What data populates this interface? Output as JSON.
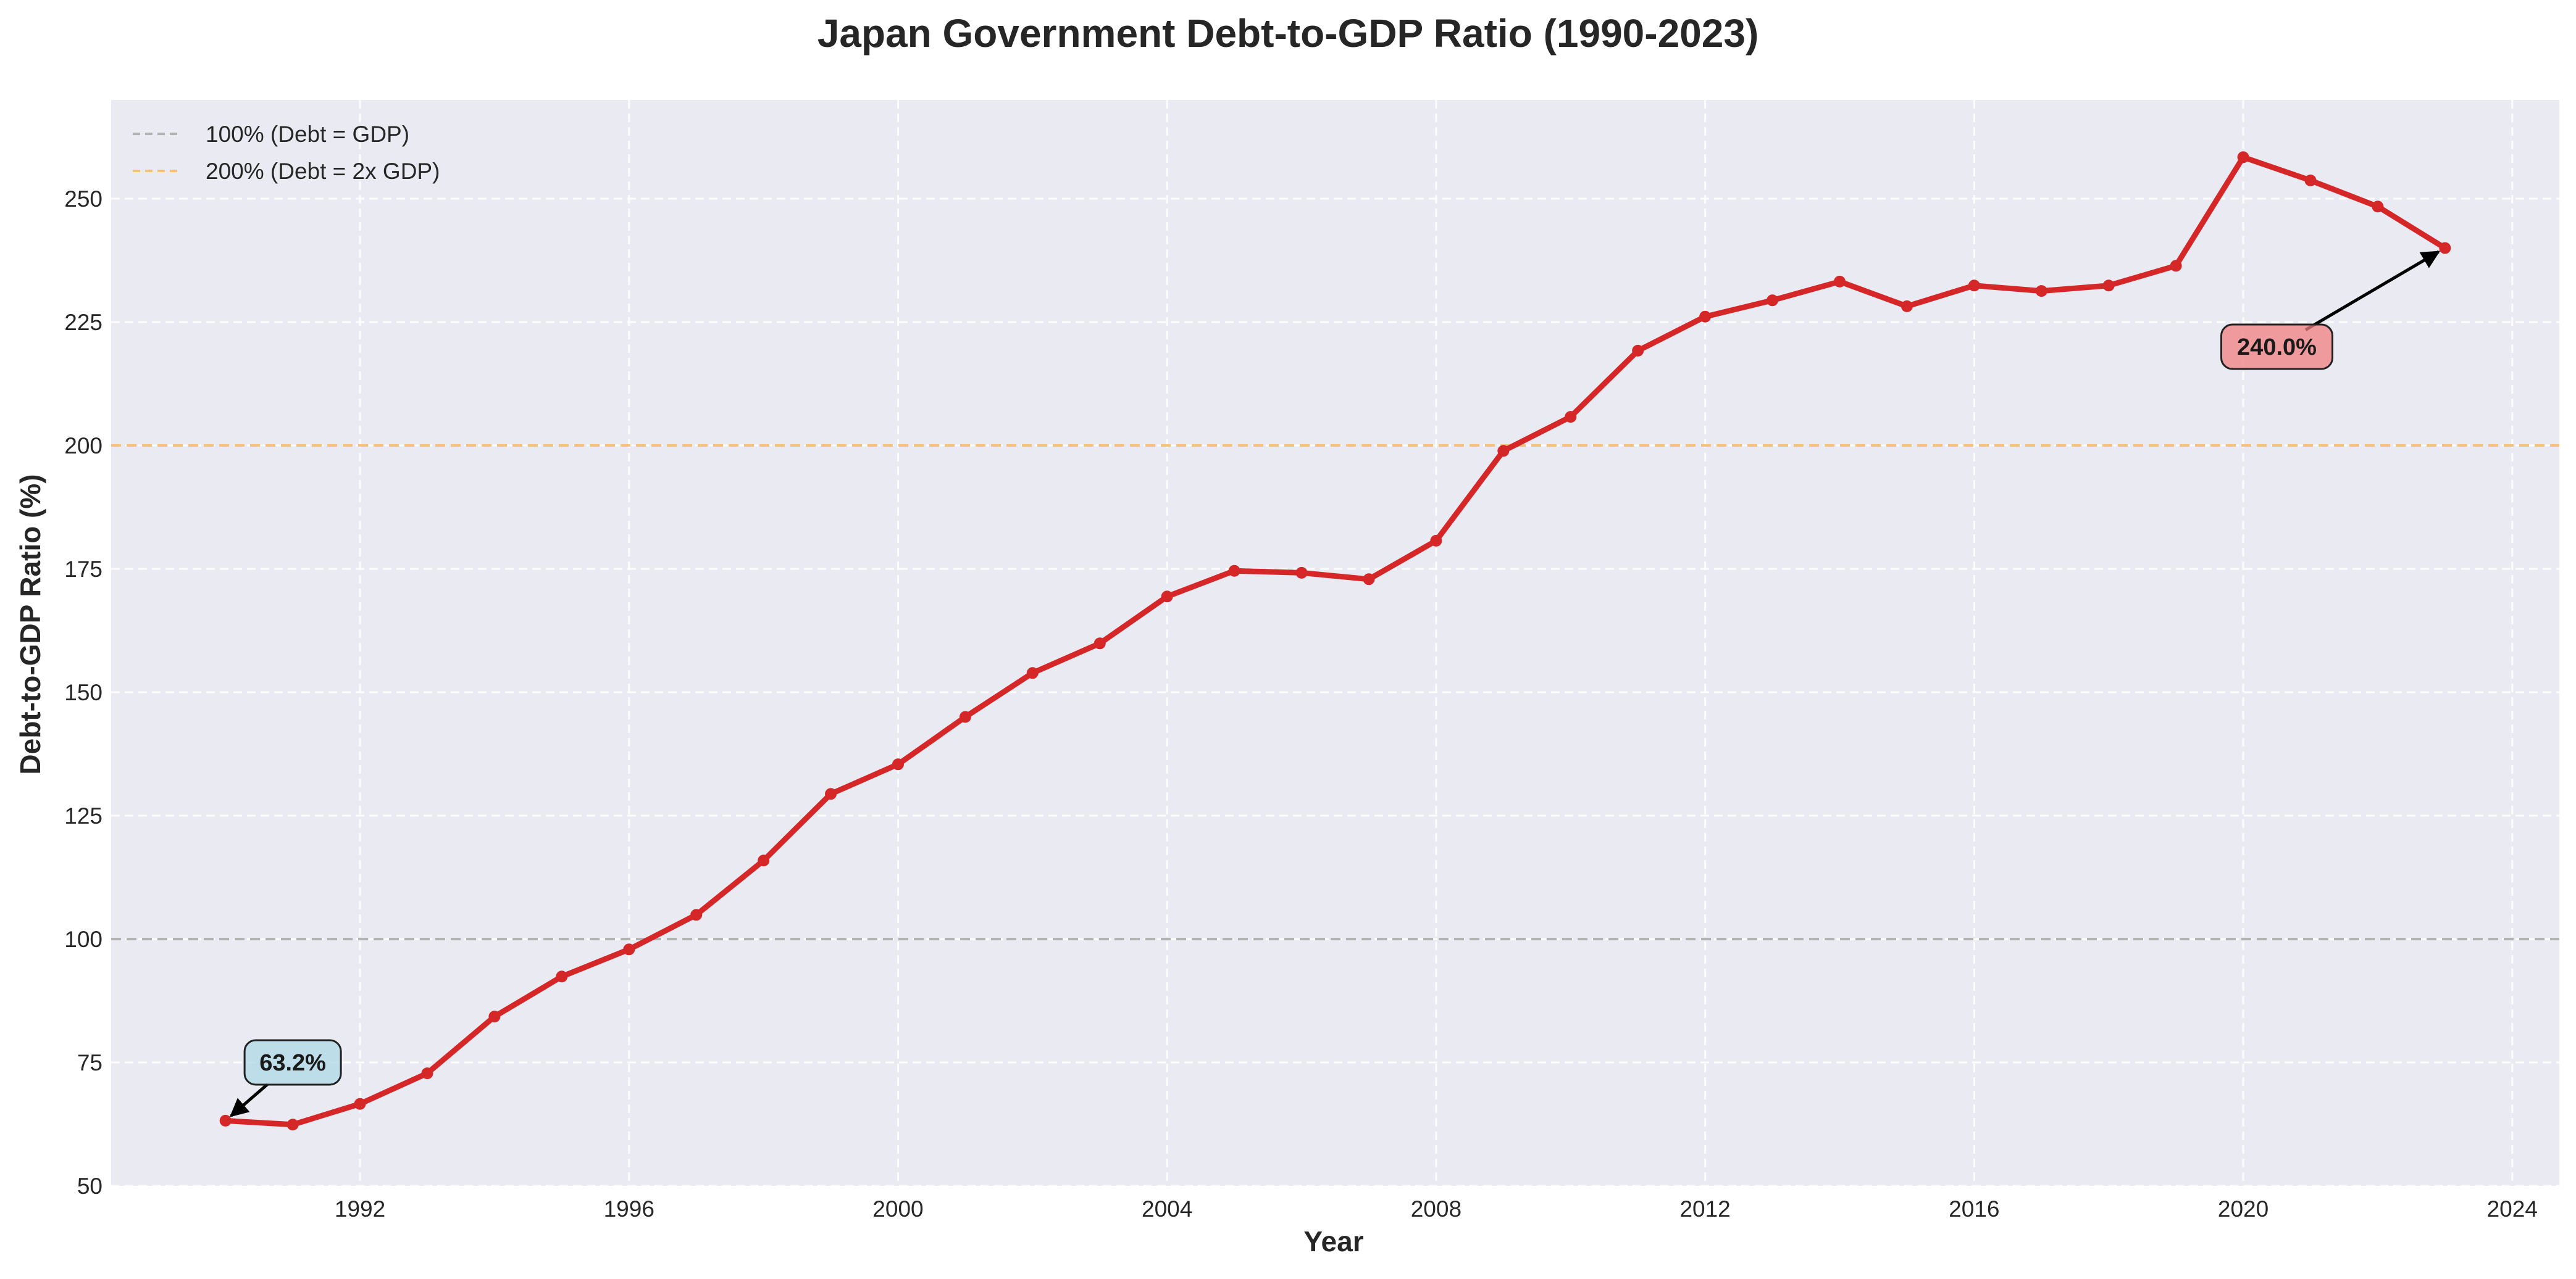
{
  "chart_data": {
    "type": "line",
    "title": "Japan Government Debt-to-GDP Ratio (1990-2023)",
    "xlabel": "Year",
    "ylabel": "Debt-to-GDP Ratio (%)",
    "xlim": [
      1988.3,
      2024.7
    ],
    "ylim": [
      50,
      270
    ],
    "xticks": [
      1992,
      1996,
      2000,
      2004,
      2008,
      2012,
      2016,
      2020,
      2024
    ],
    "yticks": [
      50,
      75,
      100,
      125,
      150,
      175,
      200,
      225,
      250
    ],
    "grid": true,
    "legend_position": "top-left",
    "series": [
      {
        "color": "#d62728",
        "x": [
          1990,
          1991,
          1992,
          1993,
          1994,
          1995,
          1996,
          1997,
          1998,
          1999,
          2000,
          2001,
          2002,
          2003,
          2004,
          2005,
          2006,
          2007,
          2008,
          2009,
          2010,
          2011,
          2012,
          2013,
          2014,
          2015,
          2016,
          2017,
          2018,
          2019,
          2020,
          2021,
          2022,
          2023
        ],
        "values": [
          63.2,
          62.4,
          66.6,
          72.8,
          84.3,
          92.4,
          97.9,
          104.9,
          115.9,
          129.4,
          135.4,
          145.0,
          153.9,
          159.9,
          169.4,
          174.6,
          174.2,
          172.9,
          180.7,
          198.9,
          205.8,
          219.2,
          226.1,
          229.4,
          233.2,
          228.2,
          232.4,
          231.3,
          232.4,
          236.4,
          258.4,
          253.7,
          248.4,
          240.0
        ]
      }
    ],
    "reference_lines": [
      {
        "y": 100,
        "label": "100% (Debt = GDP)",
        "color": "#b3b3b3"
      },
      {
        "y": 200,
        "label": "200% (Debt = 2x GDP)",
        "color": "#f5c27a"
      }
    ],
    "annotations": [
      {
        "text": "63.2%",
        "x": 1990,
        "y": 63.2,
        "text_x": 1991,
        "text_y": 75,
        "box_color": "#add8e6"
      },
      {
        "text": "240.0%",
        "x": 2023,
        "y": 240.0,
        "text_x": 2020.5,
        "text_y": 220,
        "box_color": "#f08080"
      }
    ],
    "colors": {
      "plot_background": "#eaeaf2",
      "figure_background": "#ffffff",
      "grid": "#ffffff"
    }
  }
}
